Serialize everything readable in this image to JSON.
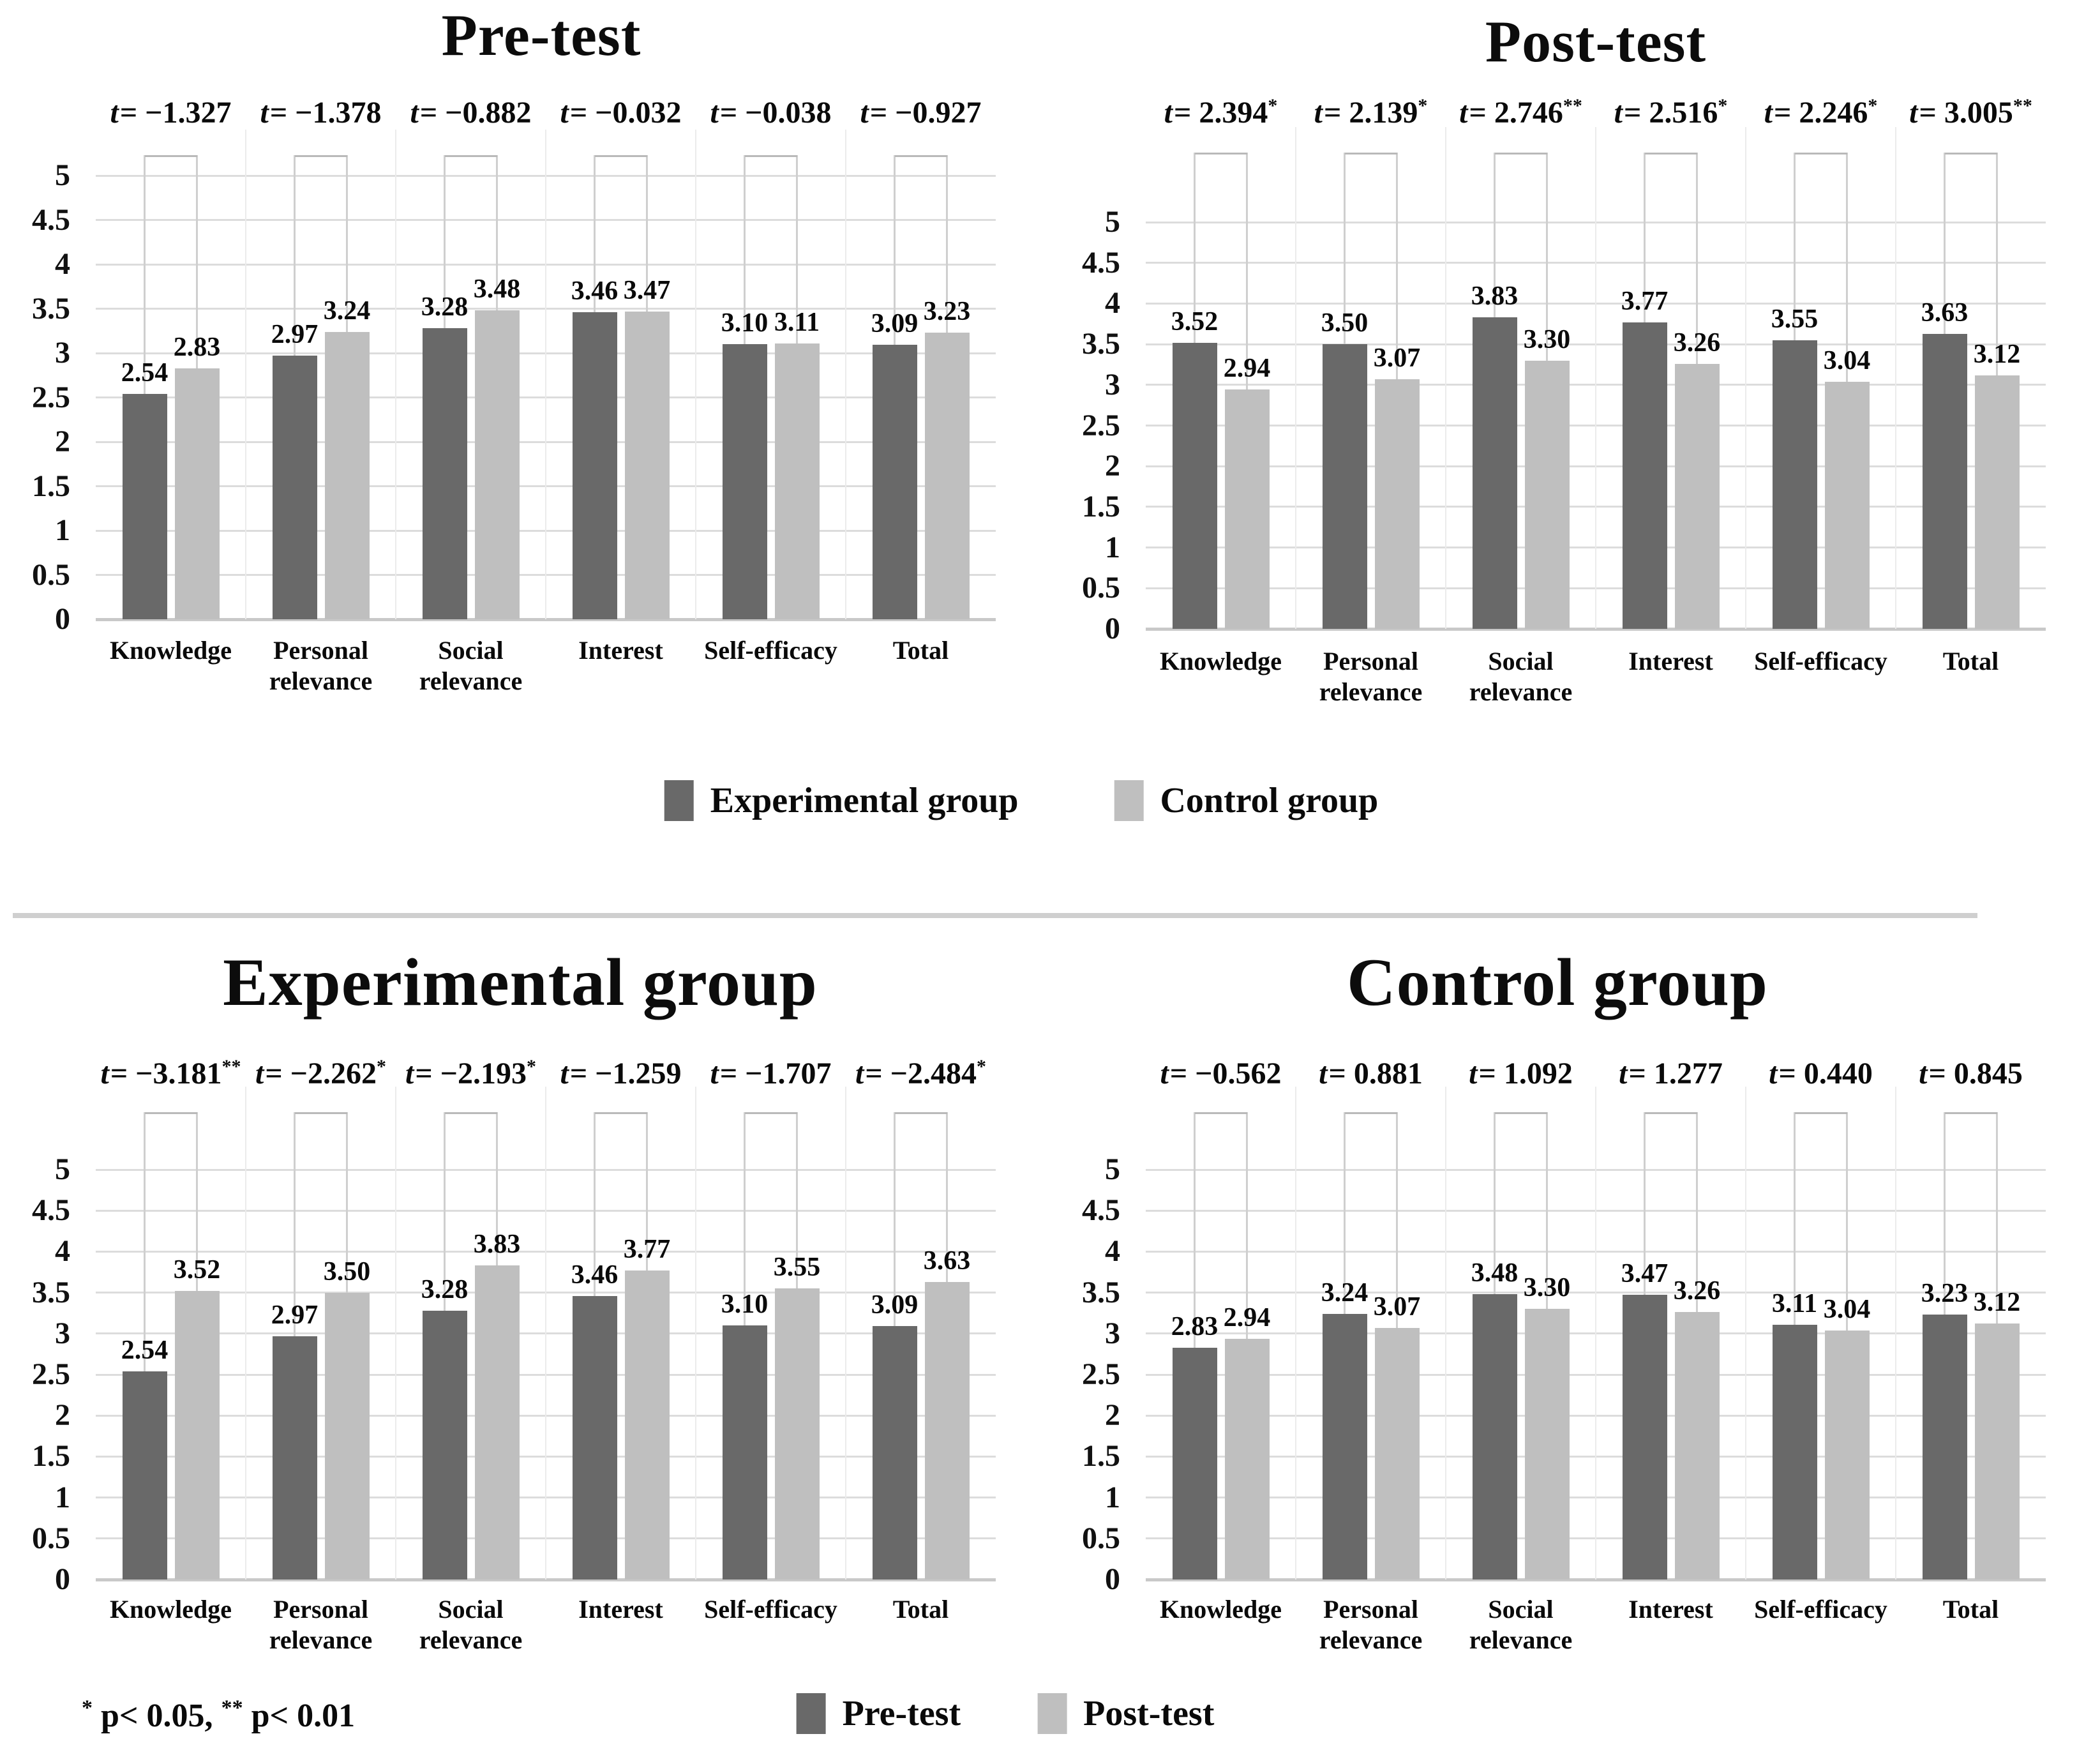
{
  "figure": {
    "footnote": {
      "sig1": "*",
      "p1": " p< 0.05, ",
      "sig2": "**",
      "p2": " p< 0.01"
    }
  },
  "legends": {
    "top": [
      {
        "label": "Experimental group",
        "color": "#696969"
      },
      {
        "label": "Control group",
        "color": "#bfbfbf"
      }
    ],
    "bottom": [
      {
        "label": "Pre-test",
        "color": "#696969"
      },
      {
        "label": "Post-test",
        "color": "#bfbfbf"
      }
    ]
  },
  "chart_data": [
    {
      "type": "bar",
      "title": "Pre-test",
      "categories": [
        "Knowledge",
        "Personal\nrelevance",
        "Social\nrelevance",
        "Interest",
        "Self-efficacy",
        "Total"
      ],
      "series": [
        {
          "name": "Experimental group",
          "color": "#696969",
          "values": [
            2.54,
            2.97,
            3.28,
            3.46,
            3.1,
            3.09
          ],
          "labels": [
            "2.54",
            "2.97",
            "3.28",
            "3.46",
            "3.10",
            "3.09"
          ]
        },
        {
          "name": "Control group",
          "color": "#bfbfbf",
          "values": [
            2.83,
            3.24,
            3.48,
            3.47,
            3.11,
            3.23
          ],
          "labels": [
            "2.83",
            "3.24",
            "3.48",
            "3.47",
            "3.11",
            "3.23"
          ]
        }
      ],
      "t_stats": [
        {
          "t": "−1.327",
          "sig": ""
        },
        {
          "t": "−1.378",
          "sig": ""
        },
        {
          "t": "−0.882",
          "sig": ""
        },
        {
          "t": "−0.032",
          "sig": ""
        },
        {
          "t": "−0.038",
          "sig": ""
        },
        {
          "t": "−0.927",
          "sig": ""
        }
      ],
      "xlabel": "",
      "ylabel": "",
      "ylim": [
        0,
        5
      ],
      "ytick_step": 0.5,
      "yticks": [
        "5",
        "4.5",
        "4",
        "3.5",
        "3",
        "2.5",
        "2",
        "1.5",
        "1",
        "0.5",
        "0"
      ],
      "grid": true,
      "legend_position": "below"
    },
    {
      "type": "bar",
      "title": "Post-test",
      "categories": [
        "Knowledge",
        "Personal\nrelevance",
        "Social\nrelevance",
        "Interest",
        "Self-efficacy",
        "Total"
      ],
      "series": [
        {
          "name": "Experimental group",
          "color": "#696969",
          "values": [
            3.52,
            3.5,
            3.83,
            3.77,
            3.55,
            3.63
          ],
          "labels": [
            "3.52",
            "3.50",
            "3.83",
            "3.77",
            "3.55",
            "3.63"
          ]
        },
        {
          "name": "Control group",
          "color": "#bfbfbf",
          "values": [
            2.94,
            3.07,
            3.3,
            3.26,
            3.04,
            3.12
          ],
          "labels": [
            "2.94",
            "3.07",
            "3.30",
            "3.26",
            "3.04",
            "3.12"
          ]
        }
      ],
      "t_stats": [
        {
          "t": "2.394",
          "sig": "*"
        },
        {
          "t": "2.139",
          "sig": "*"
        },
        {
          "t": "2.746",
          "sig": "**"
        },
        {
          "t": "2.516",
          "sig": "*"
        },
        {
          "t": "2.246",
          "sig": "*"
        },
        {
          "t": "3.005",
          "sig": "**"
        }
      ],
      "xlabel": "",
      "ylabel": "",
      "ylim": [
        0,
        5
      ],
      "ytick_step": 0.5,
      "yticks": [
        "5",
        "4.5",
        "4",
        "3.5",
        "3",
        "2.5",
        "2",
        "1.5",
        "1",
        "0.5",
        "0"
      ],
      "grid": true,
      "legend_position": "below"
    },
    {
      "type": "bar",
      "title": "Experimental group",
      "categories": [
        "Knowledge",
        "Personal\nrelevance",
        "Social\nrelevance",
        "Interest",
        "Self-efficacy",
        "Total"
      ],
      "series": [
        {
          "name": "Pre-test",
          "color": "#696969",
          "values": [
            2.54,
            2.97,
            3.28,
            3.46,
            3.1,
            3.09
          ],
          "labels": [
            "2.54",
            "2.97",
            "3.28",
            "3.46",
            "3.10",
            "3.09"
          ]
        },
        {
          "name": "Post-test",
          "color": "#bfbfbf",
          "values": [
            3.52,
            3.5,
            3.83,
            3.77,
            3.55,
            3.63
          ],
          "labels": [
            "3.52",
            "3.50",
            "3.83",
            "3.77",
            "3.55",
            "3.63"
          ]
        }
      ],
      "t_stats": [
        {
          "t": "−3.181",
          "sig": "**"
        },
        {
          "t": "−2.262",
          "sig": "*"
        },
        {
          "t": "−2.193",
          "sig": "*"
        },
        {
          "t": "−1.259",
          "sig": ""
        },
        {
          "t": "−1.707",
          "sig": ""
        },
        {
          "t": "−2.484",
          "sig": "*"
        }
      ],
      "xlabel": "",
      "ylabel": "",
      "ylim": [
        0,
        5
      ],
      "ytick_step": 0.5,
      "yticks": [
        "5",
        "4.5",
        "4",
        "3.5",
        "3",
        "2.5",
        "2",
        "1.5",
        "1",
        "0.5",
        "0"
      ],
      "grid": true,
      "legend_position": "below"
    },
    {
      "type": "bar",
      "title": "Control group",
      "categories": [
        "Knowledge",
        "Personal\nrelevance",
        "Social\nrelevance",
        "Interest",
        "Self-efficacy",
        "Total"
      ],
      "series": [
        {
          "name": "Pre-test",
          "color": "#696969",
          "values": [
            2.83,
            3.24,
            3.48,
            3.47,
            3.11,
            3.23
          ],
          "labels": [
            "2.83",
            "3.24",
            "3.48",
            "3.47",
            "3.11",
            "3.23"
          ]
        },
        {
          "name": "Post-test",
          "color": "#bfbfbf",
          "values": [
            2.94,
            3.07,
            3.3,
            3.26,
            3.04,
            3.12
          ],
          "labels": [
            "2.94",
            "3.07",
            "3.30",
            "3.26",
            "3.04",
            "3.12"
          ]
        }
      ],
      "t_stats": [
        {
          "t": "−0.562",
          "sig": ""
        },
        {
          "t": "0.881",
          "sig": ""
        },
        {
          "t": "1.092",
          "sig": ""
        },
        {
          "t": "1.277",
          "sig": ""
        },
        {
          "t": "0.440",
          "sig": ""
        },
        {
          "t": "0.845",
          "sig": ""
        }
      ],
      "xlabel": "",
      "ylabel": "",
      "ylim": [
        0,
        5
      ],
      "ytick_step": 0.5,
      "yticks": [
        "5",
        "4.5",
        "4",
        "3.5",
        "3",
        "2.5",
        "2",
        "1.5",
        "1",
        "0.5",
        "0"
      ],
      "grid": true,
      "legend_position": "below"
    }
  ]
}
